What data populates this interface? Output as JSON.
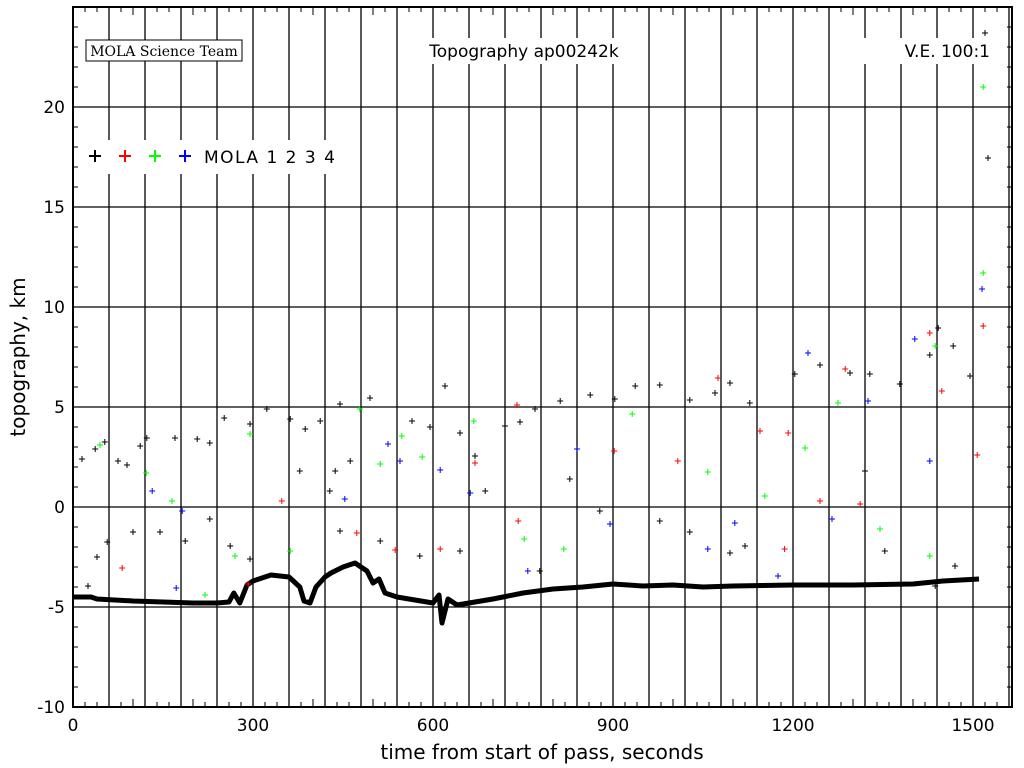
{
  "chart_data": {
    "type": "scatter",
    "title": "Topography ap00242k",
    "credit": "MOLA Science Team",
    "vertical_exaggeration": "V.E. 100:1",
    "xlabel": "time from start of pass, seconds",
    "ylabel": "topography, km",
    "xlim": [
      0,
      1565
    ],
    "ylim": [
      -10,
      25
    ],
    "xticks": [
      0,
      300,
      600,
      900,
      1200,
      1500
    ],
    "yticks": [
      -10,
      -5,
      0,
      5,
      10,
      15,
      20
    ],
    "x_grid_step": 60,
    "y_grid_step": 5,
    "grid": true,
    "legend": {
      "placement": "top-left",
      "label": "MOLA 1 2 3 4",
      "colors": [
        "#000000",
        "#ff0000",
        "#00ff00",
        "#0000ff"
      ]
    },
    "ground_profile": [
      [
        0,
        -4.5
      ],
      [
        30,
        -4.5
      ],
      [
        40,
        -4.6
      ],
      [
        100,
        -4.7
      ],
      [
        150,
        -4.75
      ],
      [
        200,
        -4.8
      ],
      [
        240,
        -4.8
      ],
      [
        260,
        -4.75
      ],
      [
        268,
        -4.3
      ],
      [
        278,
        -4.8
      ],
      [
        290,
        -3.9
      ],
      [
        300,
        -3.7
      ],
      [
        330,
        -3.4
      ],
      [
        360,
        -3.5
      ],
      [
        378,
        -4.0
      ],
      [
        385,
        -4.7
      ],
      [
        395,
        -4.8
      ],
      [
        405,
        -4.0
      ],
      [
        420,
        -3.5
      ],
      [
        430,
        -3.3
      ],
      [
        450,
        -3.0
      ],
      [
        470,
        -2.8
      ],
      [
        490,
        -3.2
      ],
      [
        500,
        -3.8
      ],
      [
        510,
        -3.6
      ],
      [
        520,
        -4.3
      ],
      [
        540,
        -4.5
      ],
      [
        560,
        -4.6
      ],
      [
        580,
        -4.7
      ],
      [
        600,
        -4.8
      ],
      [
        610,
        -4.4
      ],
      [
        615,
        -5.8
      ],
      [
        625,
        -4.6
      ],
      [
        640,
        -4.9
      ],
      [
        660,
        -4.8
      ],
      [
        700,
        -4.6
      ],
      [
        750,
        -4.3
      ],
      [
        800,
        -4.1
      ],
      [
        850,
        -4.0
      ],
      [
        900,
        -3.85
      ],
      [
        950,
        -3.95
      ],
      [
        1000,
        -3.9
      ],
      [
        1050,
        -4.0
      ],
      [
        1100,
        -3.95
      ],
      [
        1200,
        -3.9
      ],
      [
        1300,
        -3.9
      ],
      [
        1400,
        -3.85
      ],
      [
        1450,
        -3.7
      ],
      [
        1510,
        -3.6
      ]
    ],
    "series": [
      {
        "name": "1",
        "color": "#000000",
        "points": [
          [
            15,
            2.4
          ],
          [
            37,
            2.9
          ],
          [
            53,
            3.25
          ],
          [
            75,
            2.3
          ],
          [
            90,
            2.1
          ],
          [
            112,
            3.05
          ],
          [
            123,
            3.45
          ],
          [
            170,
            3.45
          ],
          [
            207,
            3.4
          ],
          [
            228,
            3.2
          ],
          [
            25,
            -3.95
          ],
          [
            40,
            -2.5
          ],
          [
            57,
            -1.75
          ],
          [
            100,
            -1.25
          ],
          [
            145,
            -1.25
          ],
          [
            187,
            -1.7
          ],
          [
            228,
            -0.6
          ],
          [
            252,
            4.45
          ],
          [
            295,
            4.15
          ],
          [
            323,
            4.9
          ],
          [
            362,
            4.4
          ],
          [
            387,
            3.9
          ],
          [
            412,
            4.3
          ],
          [
            445,
            5.15
          ],
          [
            495,
            5.45
          ],
          [
            437,
            1.8
          ],
          [
            378,
            1.8
          ],
          [
            428,
            0.8
          ],
          [
            462,
            2.3
          ],
          [
            565,
            4.3
          ],
          [
            595,
            4.0
          ],
          [
            620,
            6.05
          ],
          [
            645,
            3.7
          ],
          [
            670,
            2.55
          ],
          [
            687,
            0.8
          ],
          [
            720,
            4.05
          ],
          [
            745,
            4.25
          ],
          [
            770,
            4.9
          ],
          [
            812,
            5.3
          ],
          [
            862,
            5.6
          ],
          [
            903,
            5.4
          ],
          [
            937,
            6.05
          ],
          [
            978,
            6.1
          ],
          [
            1028,
            5.35
          ],
          [
            1070,
            5.7
          ],
          [
            1095,
            6.2
          ],
          [
            1128,
            5.2
          ],
          [
            1203,
            6.65
          ],
          [
            1245,
            7.1
          ],
          [
            1295,
            6.7
          ],
          [
            1328,
            6.65
          ],
          [
            1378,
            6.15
          ],
          [
            1428,
            7.6
          ],
          [
            1442,
            8.95
          ],
          [
            1467,
            8.05
          ],
          [
            1495,
            6.55
          ],
          [
            1520,
            23.7
          ],
          [
            1525,
            17.45
          ],
          [
            1353,
            -2.2
          ],
          [
            1320,
            1.8
          ],
          [
            1120,
            -1.95
          ],
          [
            1095,
            -2.3
          ],
          [
            1028,
            -1.25
          ],
          [
            878,
            -0.2
          ],
          [
            978,
            -0.7
          ],
          [
            828,
            1.4
          ],
          [
            778,
            -3.2
          ],
          [
            645,
            -2.2
          ],
          [
            578,
            -2.45
          ],
          [
            512,
            -1.7
          ],
          [
            445,
            -1.2
          ],
          [
            295,
            -2.6
          ],
          [
            262,
            -1.95
          ],
          [
            1437,
            -3.95
          ],
          [
            1470,
            -2.95
          ]
        ]
      },
      {
        "name": "2",
        "color": "#ff0000",
        "points": [
          [
            82,
            -3.05
          ],
          [
            292,
            -3.85
          ],
          [
            348,
            0.3
          ],
          [
            473,
            -1.3
          ],
          [
            537,
            -2.15
          ],
          [
            612,
            -2.1
          ],
          [
            670,
            2.2
          ],
          [
            740,
            5.1
          ],
          [
            742,
            -0.7
          ],
          [
            902,
            2.8
          ],
          [
            1008,
            2.3
          ],
          [
            1075,
            6.45
          ],
          [
            1145,
            3.8
          ],
          [
            1186,
            -2.1
          ],
          [
            1192,
            3.7
          ],
          [
            1245,
            0.3
          ],
          [
            1287,
            6.9
          ],
          [
            1312,
            0.15
          ],
          [
            1428,
            8.7
          ],
          [
            1448,
            5.8
          ],
          [
            1507,
            2.6
          ],
          [
            1517,
            9.05
          ]
        ]
      },
      {
        "name": "3",
        "color": "#00ff00",
        "points": [
          [
            45,
            3.1
          ],
          [
            122,
            1.7
          ],
          [
            165,
            0.3
          ],
          [
            220,
            -4.4
          ],
          [
            270,
            -2.45
          ],
          [
            295,
            3.65
          ],
          [
            362,
            -2.2
          ],
          [
            478,
            4.9
          ],
          [
            512,
            2.15
          ],
          [
            548,
            3.55
          ],
          [
            582,
            2.5
          ],
          [
            668,
            4.3
          ],
          [
            752,
            -1.6
          ],
          [
            818,
            -2.1
          ],
          [
            932,
            4.65
          ],
          [
            1058,
            1.75
          ],
          [
            1153,
            0.55
          ],
          [
            1220,
            2.95
          ],
          [
            1275,
            5.2
          ],
          [
            1345,
            -1.1
          ],
          [
            1437,
            8.05
          ],
          [
            1428,
            -2.45
          ],
          [
            1517,
            11.7
          ],
          [
            1517,
            21
          ]
        ]
      },
      {
        "name": "4",
        "color": "#0000ff",
        "points": [
          [
            132,
            0.8
          ],
          [
            182,
            -0.2
          ],
          [
            172,
            -4.05
          ],
          [
            453,
            0.4
          ],
          [
            525,
            3.15
          ],
          [
            545,
            2.3
          ],
          [
            612,
            1.85
          ],
          [
            662,
            0.7
          ],
          [
            758,
            -3.2
          ],
          [
            840,
            2.9
          ],
          [
            895,
            -0.85
          ],
          [
            1058,
            -2.1
          ],
          [
            1103,
            -0.8
          ],
          [
            1175,
            -3.45
          ],
          [
            1225,
            7.7
          ],
          [
            1265,
            -0.6
          ],
          [
            1325,
            5.3
          ],
          [
            1403,
            8.4
          ],
          [
            1428,
            2.3
          ],
          [
            1515,
            10.9
          ]
        ]
      }
    ]
  }
}
